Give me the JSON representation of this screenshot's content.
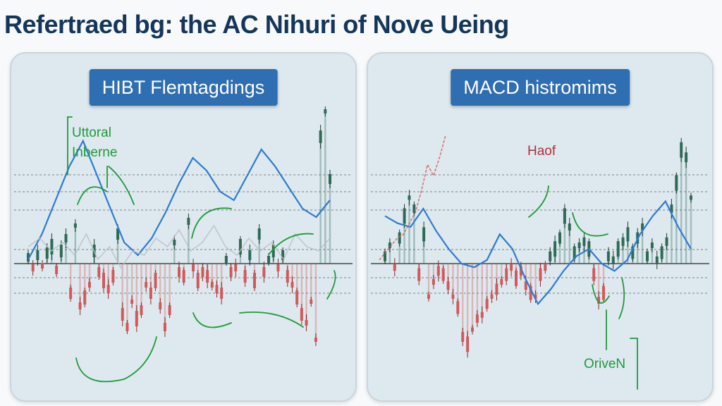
{
  "title": "Refertraed bg: the AC Nihuri of Nove Ueing",
  "colors": {
    "title": "#14365a",
    "panel_bg": "#dde9ef",
    "badge": "#2f6eb0",
    "bull": "#2e6b55",
    "bear": "#d05a5a",
    "line_blue": "#2f7ad0",
    "line_grey": "#b8bec2",
    "annotation_green": "#1f9a3a",
    "annotation_red": "#b0303a"
  },
  "chart_data": [
    {
      "type": "candlestick",
      "title": "HIBT Flemtagdings",
      "annotations": [
        "Uttoral",
        "Inberne"
      ],
      "gridlines": "dashed horizontal",
      "series": [
        {
          "kind": "candles",
          "values": [
            3,
            -2,
            4,
            -1,
            5,
            8,
            -3,
            6,
            12,
            -14,
            18,
            -20,
            -16,
            -10,
            6,
            -4,
            -8,
            -12,
            -6,
            14,
            -24,
            -30,
            -18,
            -26,
            -22,
            -10,
            -14,
            -8,
            -20,
            -30,
            -22,
            10,
            -4,
            -6,
            20,
            -2,
            -8,
            -4,
            -6,
            -10,
            -12,
            -14,
            2,
            -4,
            -2,
            8,
            -6,
            4,
            -8,
            14,
            -4,
            2,
            6,
            -2,
            4,
            -6,
            -10,
            -16,
            -24,
            -28,
            -18,
            -36,
            60,
            72,
            40
          ]
        },
        {
          "kind": "line",
          "color": "blue",
          "values": [
            2,
            14,
            30,
            46,
            58,
            42,
            26,
            10,
            4,
            12,
            24,
            38,
            50,
            44,
            34,
            30,
            42,
            54,
            46,
            36,
            26,
            22,
            30
          ]
        },
        {
          "kind": "line",
          "color": "grey",
          "values": [
            8,
            12,
            6,
            10,
            4,
            14,
            2,
            8,
            -2,
            6,
            4,
            12,
            8,
            16,
            6,
            10,
            18,
            8,
            4,
            12,
            6,
            10,
            2,
            14,
            8,
            6,
            12
          ]
        }
      ]
    },
    {
      "type": "candlestick",
      "title": "MACD histromims",
      "annotations": [
        "Haof",
        "OriveN"
      ],
      "gridlines": "dashed horizontal",
      "series": [
        {
          "kind": "candles",
          "values": [
            4,
            10,
            -2,
            14,
            26,
            36,
            30,
            -6,
            16,
            -18,
            -10,
            -4,
            -6,
            -12,
            -18,
            -24,
            -40,
            -44,
            -36,
            -30,
            -28,
            -22,
            -18,
            -14,
            -10,
            -6,
            -2,
            -8,
            -4,
            -12,
            -16,
            -18,
            -6,
            -2,
            4,
            8,
            14,
            26,
            20,
            6,
            10,
            12,
            8,
            -6,
            -20,
            -16,
            4,
            2,
            8,
            12,
            16,
            6,
            14,
            20,
            4,
            10,
            2,
            6,
            12,
            30,
            44,
            62,
            58,
            36
          ]
        },
        {
          "kind": "line",
          "color": "blue",
          "values": [
            26,
            22,
            20,
            30,
            18,
            8,
            0,
            -2,
            2,
            16,
            8,
            -8,
            -22,
            -14,
            -4,
            4,
            8,
            0,
            -4,
            2,
            16,
            26,
            34,
            20,
            8
          ]
        },
        {
          "kind": "line",
          "color": "red",
          "values": [
            2,
            6,
            10,
            14,
            16,
            22,
            28,
            40,
            54,
            48,
            58,
            70
          ]
        }
      ]
    }
  ]
}
